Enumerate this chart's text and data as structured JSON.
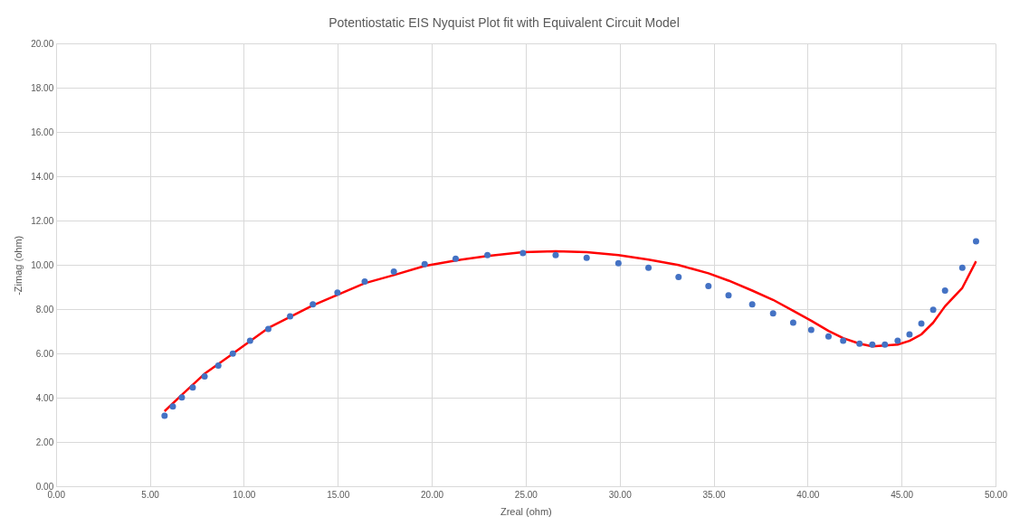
{
  "chart_data": {
    "type": "scatter",
    "title": "Potentiostatic EIS Nyquist Plot fit with Equivalent Circuit Model",
    "xlabel": "Zreal (ohm)",
    "ylabel": "-Zimag (ohm)",
    "xlim": [
      0,
      50
    ],
    "ylim": [
      0,
      20
    ],
    "xticks": [
      {
        "value": 0,
        "label": "0.00"
      },
      {
        "value": 5,
        "label": "5.00"
      },
      {
        "value": 10,
        "label": "10.00"
      },
      {
        "value": 15,
        "label": "15.00"
      },
      {
        "value": 20,
        "label": "20.00"
      },
      {
        "value": 25,
        "label": "25.00"
      },
      {
        "value": 30,
        "label": "30.00"
      },
      {
        "value": 35,
        "label": "35.00"
      },
      {
        "value": 40,
        "label": "40.00"
      },
      {
        "value": 45,
        "label": "45.00"
      },
      {
        "value": 50,
        "label": "50.00"
      }
    ],
    "yticks": [
      {
        "value": 0,
        "label": "0.00"
      },
      {
        "value": 2,
        "label": "2.00"
      },
      {
        "value": 4,
        "label": "4.00"
      },
      {
        "value": 6,
        "label": "6.00"
      },
      {
        "value": 8,
        "label": "8.00"
      },
      {
        "value": 10,
        "label": "10.00"
      },
      {
        "value": 12,
        "label": "12.00"
      },
      {
        "value": 14,
        "label": "14.00"
      },
      {
        "value": 16,
        "label": "16.00"
      },
      {
        "value": 18,
        "label": "18.00"
      },
      {
        "value": 20,
        "label": "20.00"
      }
    ],
    "grid": true,
    "legend": false,
    "marker": "circle",
    "series": [
      {
        "type": "scatter",
        "color": "#4472c4",
        "x": [
          5.76,
          6.2,
          6.68,
          7.26,
          7.89,
          8.62,
          9.39,
          10.31,
          11.28,
          12.44,
          13.65,
          14.96,
          16.41,
          17.96,
          19.6,
          21.25,
          22.94,
          24.83,
          26.57,
          28.22,
          29.91,
          31.51,
          33.11,
          34.7,
          35.77,
          37.03,
          38.14,
          39.21,
          40.17,
          41.09,
          41.87,
          42.74,
          43.42,
          44.09,
          44.77,
          45.4,
          46.03,
          46.66,
          47.29,
          48.21,
          48.94
        ],
        "values": [
          3.22,
          3.63,
          4.04,
          4.49,
          4.99,
          5.48,
          6.02,
          6.6,
          7.13,
          7.71,
          8.25,
          8.78,
          9.28,
          9.73,
          10.06,
          10.31,
          10.47,
          10.56,
          10.47,
          10.35,
          10.1,
          9.9,
          9.48,
          9.07,
          8.66,
          8.25,
          7.84,
          7.42,
          7.09,
          6.8,
          6.6,
          6.47,
          6.43,
          6.43,
          6.6,
          6.89,
          7.38,
          8.0,
          8.87,
          9.9,
          11.09
        ]
      },
      {
        "type": "line",
        "color": "#ff0000",
        "marker": "none",
        "line_style": "solid",
        "x": [
          5.76,
          6.68,
          7.89,
          9.39,
          11.28,
          13.65,
          16.41,
          17.96,
          19.6,
          21.25,
          22.94,
          24.83,
          26.57,
          28.22,
          29.91,
          31.51,
          33.11,
          34.7,
          35.77,
          37.03,
          38.14,
          39.21,
          40.17,
          41.09,
          41.87,
          42.74,
          43.42,
          44.09,
          44.77,
          45.4,
          46.03,
          46.66,
          47.29,
          48.21,
          48.94
        ],
        "values": [
          3.42,
          4.16,
          5.11,
          6.02,
          7.18,
          8.2,
          9.2,
          9.57,
          9.98,
          10.23,
          10.43,
          10.6,
          10.64,
          10.6,
          10.47,
          10.27,
          10.02,
          9.65,
          9.32,
          8.87,
          8.45,
          7.96,
          7.51,
          7.05,
          6.72,
          6.47,
          6.35,
          6.39,
          6.43,
          6.6,
          6.89,
          7.42,
          8.16,
          8.99,
          10.19
        ]
      }
    ]
  }
}
